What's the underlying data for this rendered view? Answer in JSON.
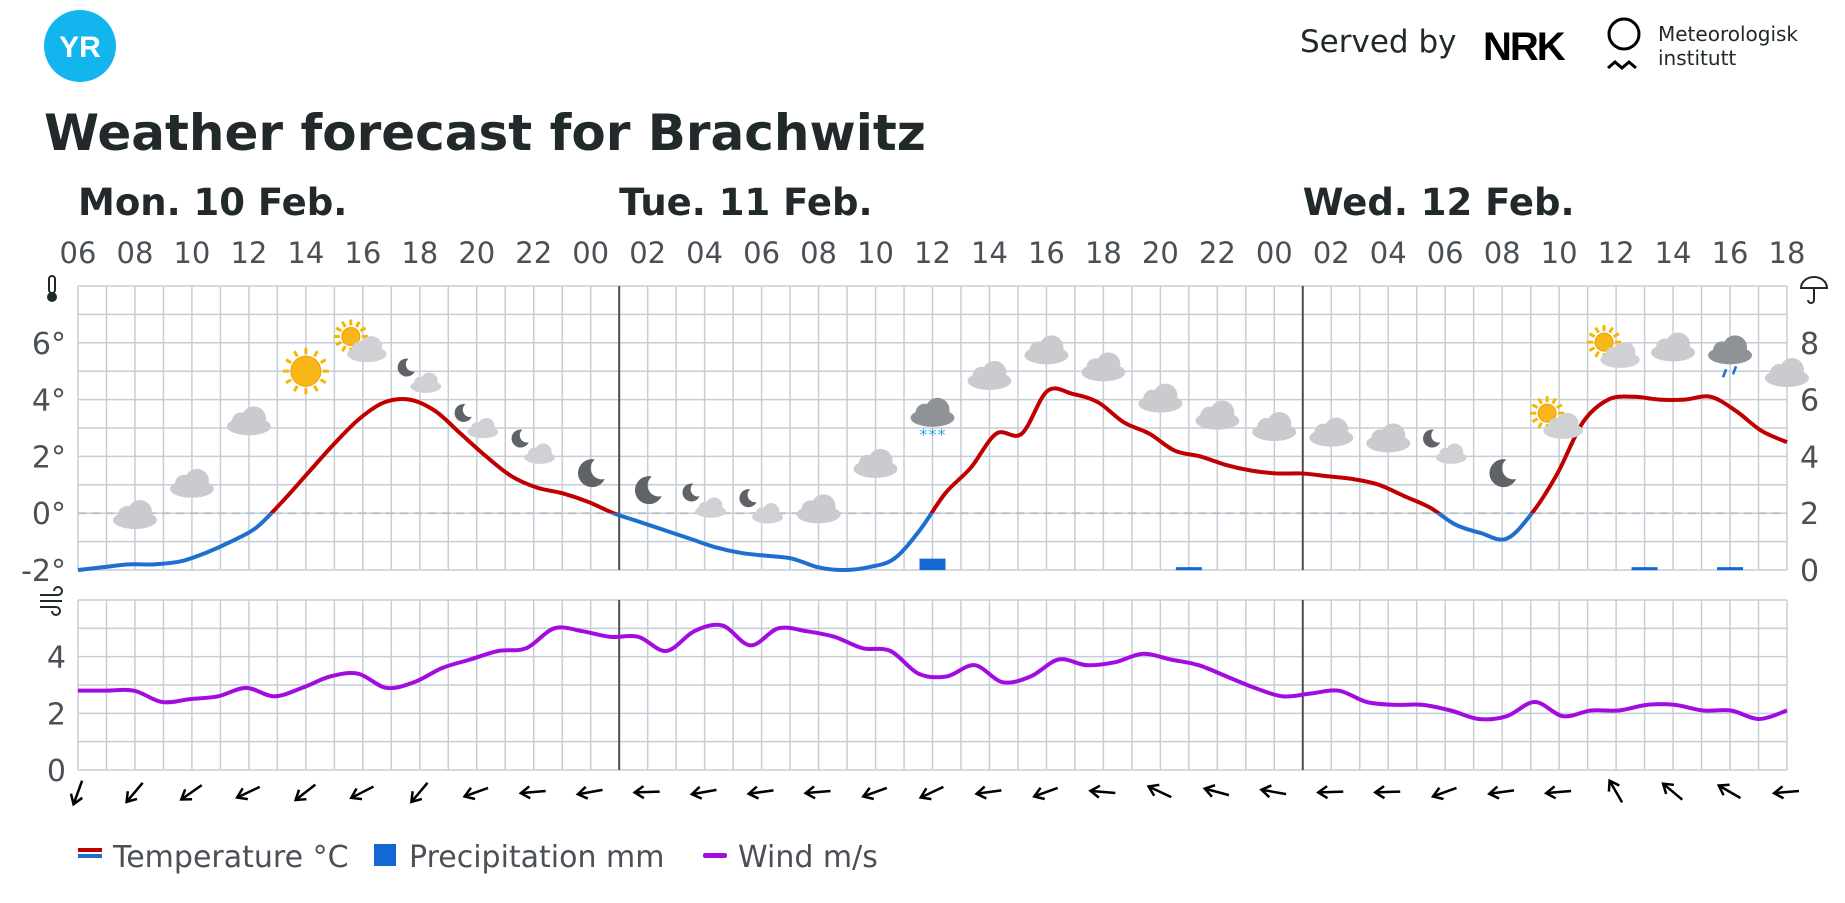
{
  "header": {
    "logo_text": "YR",
    "served_by": "Served by",
    "nrk_logo": "NRK",
    "met_line1": "Meteorologisk",
    "met_line2": "institutt"
  },
  "title": "Weather forecast for Brachwitz",
  "colors": {
    "warm": "#c00000",
    "cold": "#1f6fd0",
    "wind": "#a30ce0",
    "precip": "#1468d4",
    "grid": "#c5ced6",
    "daydivider": "#4a4f54",
    "logo": "#13b5ef"
  },
  "chart_data": {
    "type": "line",
    "days": [
      {
        "label": "Mon. 10 Feb.",
        "start": 0
      },
      {
        "label": "Tue. 11 Feb.",
        "start": 19
      },
      {
        "label": "Wed. 12 Feb.",
        "start": 43
      }
    ],
    "hour_labels": [
      "06",
      "08",
      "10",
      "12",
      "14",
      "16",
      "18",
      "20",
      "22",
      "00",
      "02",
      "04",
      "06",
      "08",
      "10",
      "12",
      "14",
      "16",
      "18",
      "20",
      "22",
      "00",
      "02",
      "04",
      "06",
      "08",
      "10",
      "12",
      "14",
      "16",
      "18"
    ],
    "temperature_axis": {
      "ticks": [
        "6°",
        "4°",
        "2°",
        "0°",
        "-2°"
      ],
      "values": [
        6,
        4,
        2,
        0,
        -2
      ],
      "range": [
        -2,
        8
      ]
    },
    "precip_axis": {
      "ticks": [
        "8",
        "6",
        "4",
        "2",
        "0"
      ],
      "values": [
        8,
        6,
        4,
        2,
        0
      ],
      "range": [
        0,
        10
      ]
    },
    "wind_axis": {
      "ticks": [
        "4",
        "2",
        "0"
      ],
      "values": [
        4,
        2,
        0
      ],
      "range": [
        0,
        6
      ]
    },
    "temperature": [
      -2.0,
      -1.9,
      -1.8,
      -1.8,
      -1.7,
      -1.4,
      -1.0,
      -0.5,
      0.4,
      1.4,
      2.4,
      3.3,
      3.9,
      4.0,
      3.6,
      2.8,
      2.0,
      1.3,
      0.9,
      0.7,
      0.4,
      0.0,
      -0.3,
      -0.6,
      -0.9,
      -1.2,
      -1.4,
      -1.5,
      -1.6,
      -1.9,
      -2.0,
      -1.9,
      -1.6,
      -0.6,
      0.7,
      1.6,
      2.8,
      2.8,
      4.3,
      4.2,
      3.9,
      3.2,
      2.8,
      2.2,
      2.0,
      1.7,
      1.5,
      1.4,
      1.4,
      1.3,
      1.2,
      1.0,
      0.6,
      0.2,
      -0.4,
      -0.7,
      -0.9,
      0.0,
      1.4,
      3.2,
      4.0,
      4.1,
      4.0,
      4.0,
      4.1,
      3.6,
      2.9,
      2.5
    ],
    "wind": [
      2.8,
      2.8,
      2.8,
      2.4,
      2.5,
      2.6,
      2.9,
      2.6,
      2.9,
      3.3,
      3.4,
      2.9,
      3.1,
      3.6,
      3.9,
      4.2,
      4.3,
      5.0,
      4.9,
      4.7,
      4.7,
      4.2,
      4.9,
      5.1,
      4.4,
      5.0,
      4.9,
      4.7,
      4.3,
      4.2,
      3.4,
      3.3,
      3.7,
      3.1,
      3.3,
      3.9,
      3.7,
      3.8,
      4.1,
      3.9,
      3.7,
      3.3,
      2.9,
      2.6,
      2.7,
      2.8,
      2.4,
      2.3,
      2.3,
      2.1,
      1.8,
      1.9,
      2.4,
      1.9,
      2.1,
      2.1,
      2.3,
      2.3,
      2.1,
      2.1,
      1.8,
      2.1
    ],
    "precipitation": [
      {
        "hour_index": 30,
        "value": 0.4
      },
      {
        "hour_index": 39,
        "value": 0.1
      },
      {
        "hour_index": 55,
        "value": 0.1
      },
      {
        "hour_index": 58,
        "value": 0.1
      }
    ],
    "weather_symbols": [
      {
        "i": 2,
        "t": -0.1,
        "icon": "cloud-icon"
      },
      {
        "i": 4,
        "t": 1.0,
        "icon": "cloud-icon"
      },
      {
        "i": 6,
        "t": 3.2,
        "icon": "cloud-icon"
      },
      {
        "i": 8,
        "t": 5.0,
        "icon": "sun-icon"
      },
      {
        "i": 10,
        "t": 5.8,
        "icon": "partly-cloudy-day-icon"
      },
      {
        "i": 12,
        "t": 4.7,
        "icon": "partly-cloudy-night-icon"
      },
      {
        "i": 14,
        "t": 3.1,
        "icon": "partly-cloudy-night-icon"
      },
      {
        "i": 16,
        "t": 2.2,
        "icon": "partly-cloudy-night-icon"
      },
      {
        "i": 18,
        "t": 1.4,
        "icon": "moon-icon"
      },
      {
        "i": 20,
        "t": 0.8,
        "icon": "moon-icon"
      },
      {
        "i": 22,
        "t": 0.3,
        "icon": "partly-cloudy-night-icon"
      },
      {
        "i": 24,
        "t": 0.1,
        "icon": "partly-cloudy-night-icon"
      },
      {
        "i": 26,
        "t": 0.1,
        "icon": "cloud-icon"
      },
      {
        "i": 28,
        "t": 1.7,
        "icon": "cloud-icon"
      },
      {
        "i": 30,
        "t": 3.5,
        "icon": "snow-cloud-icon"
      },
      {
        "i": 32,
        "t": 4.8,
        "icon": "cloud-icon"
      },
      {
        "i": 34,
        "t": 5.7,
        "icon": "cloud-icon"
      },
      {
        "i": 36,
        "t": 5.1,
        "icon": "cloud-icon"
      },
      {
        "i": 38,
        "t": 4.0,
        "icon": "cloud-icon"
      },
      {
        "i": 40,
        "t": 3.4,
        "icon": "cloud-icon"
      },
      {
        "i": 42,
        "t": 3.0,
        "icon": "cloud-icon"
      },
      {
        "i": 44,
        "t": 2.8,
        "icon": "cloud-icon"
      },
      {
        "i": 46,
        "t": 2.6,
        "icon": "cloud-icon"
      },
      {
        "i": 48,
        "t": 2.2,
        "icon": "partly-cloudy-night-icon"
      },
      {
        "i": 50,
        "t": 1.4,
        "icon": "moon-icon"
      },
      {
        "i": 52,
        "t": 3.1,
        "icon": "partly-cloudy-day-icon"
      },
      {
        "i": 54,
        "t": 5.6,
        "icon": "partly-cloudy-day-icon"
      },
      {
        "i": 56,
        "t": 5.8,
        "icon": "cloud-icon"
      },
      {
        "i": 58,
        "t": 5.7,
        "icon": "rain-cloud-icon"
      },
      {
        "i": 60,
        "t": 4.9,
        "icon": "cloud-icon"
      }
    ],
    "wind_directions_deg": [
      200,
      220,
      235,
      245,
      232,
      243,
      220,
      250,
      265,
      260,
      268,
      260,
      262,
      265,
      250,
      245,
      262,
      250,
      275,
      295,
      285,
      280,
      268,
      268,
      250,
      262,
      265,
      330,
      310,
      300,
      265
    ],
    "legend": [
      {
        "label": "Temperature °C",
        "kind": "temperature"
      },
      {
        "label": "Precipitation mm",
        "kind": "precipitation"
      },
      {
        "label": "Wind m/s",
        "kind": "wind"
      }
    ],
    "grid": true
  }
}
